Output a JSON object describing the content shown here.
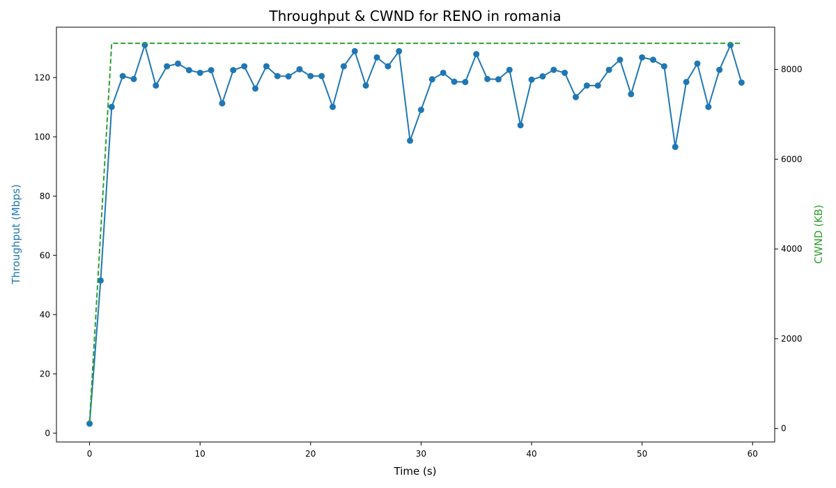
{
  "chart_data": {
    "type": "line",
    "title": "Throughput & CWND for RENO in romania",
    "xlabel": "Time (s)",
    "ylabel_left": "Throughput (Mbps)",
    "ylabel_right": "CWND (KB)",
    "xlim": [
      -3,
      62
    ],
    "ylim_left": [
      -3,
      137
    ],
    "ylim_right": [
      -300,
      8940
    ],
    "xticks": [
      0,
      10,
      20,
      30,
      40,
      50,
      60
    ],
    "yticks_left": [
      0,
      20,
      40,
      60,
      80,
      100,
      120
    ],
    "yticks_right": [
      0,
      2000,
      4000,
      6000,
      8000
    ],
    "grid": false,
    "colors": {
      "throughput": "#1f77b4",
      "cwnd": "#2ca02c"
    },
    "series": [
      {
        "axis": "left",
        "style": "solid-line-with-markers",
        "x": [
          0,
          1,
          2,
          3,
          4,
          5,
          6,
          7,
          8,
          9,
          10,
          11,
          12,
          13,
          14,
          15,
          16,
          17,
          18,
          19,
          20,
          21,
          22,
          23,
          24,
          25,
          26,
          27,
          28,
          29,
          30,
          31,
          32,
          33,
          34,
          35,
          36,
          37,
          38,
          39,
          40,
          41,
          42,
          43,
          44,
          45,
          46,
          47,
          48,
          49,
          50,
          51,
          52,
          53,
          54,
          55,
          56,
          57,
          58,
          59
        ],
        "values": [
          3.2,
          51.5,
          110.1,
          120.5,
          119.5,
          131.0,
          117.3,
          123.8,
          124.7,
          122.5,
          121.6,
          122.5,
          111.3,
          122.5,
          123.8,
          116.3,
          123.8,
          120.5,
          120.4,
          122.8,
          120.5,
          120.5,
          110.1,
          123.8,
          128.9,
          117.3,
          126.8,
          123.8,
          128.9,
          98.7,
          109.1,
          119.4,
          121.6,
          118.6,
          118.5,
          127.9,
          119.5,
          119.4,
          122.6,
          103.9,
          119.3,
          120.4,
          122.6,
          121.6,
          113.4,
          117.3,
          117.3,
          122.6,
          126.0,
          114.4,
          126.8,
          126.0,
          123.8,
          96.6,
          118.5,
          124.7,
          110.1,
          122.6,
          131.0,
          118.3
        ]
      },
      {
        "axis": "right",
        "style": "dashed-line",
        "x": [
          0,
          2,
          59
        ],
        "values": [
          150,
          8580,
          8580
        ]
      }
    ]
  }
}
